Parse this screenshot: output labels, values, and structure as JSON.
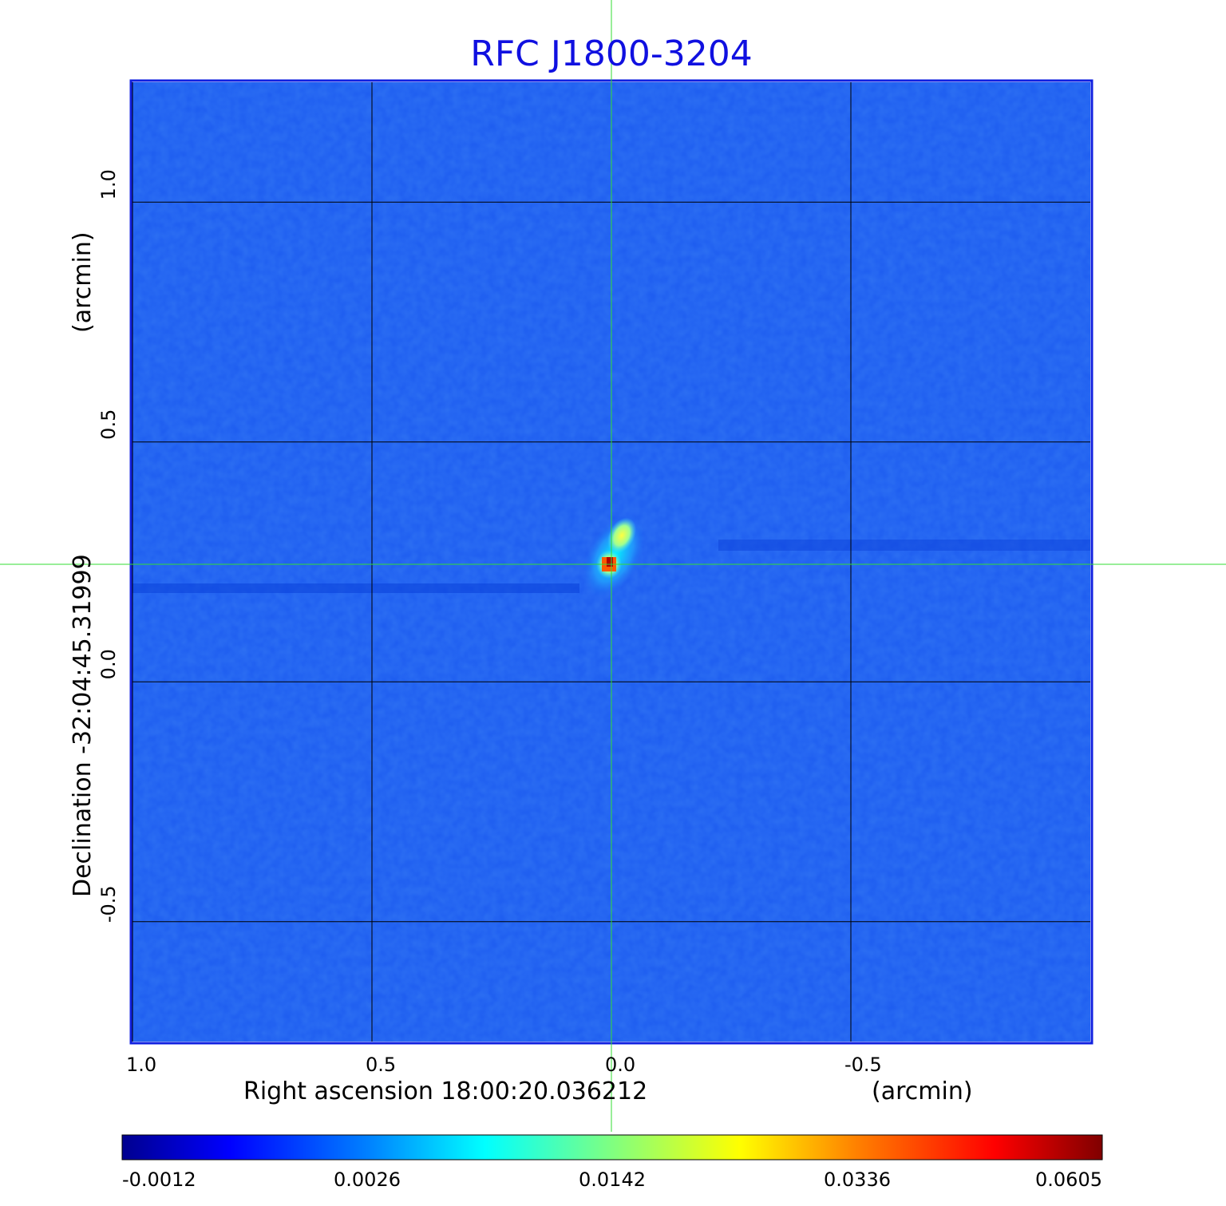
{
  "colors": {
    "title": "#1010e0",
    "background_field": "#1d5cf0",
    "grid": "#000000",
    "crosshair": "#33dd33",
    "frame": "#1020e0"
  },
  "chart_data": {
    "type": "heatmap",
    "title": "RFC J1800-3204",
    "xlabel": "Right ascension  18:00:20.036212",
    "xunit": "(arcmin)",
    "ylabel": "Declination  -32:04:45.31999",
    "yunit": "(arcmin)",
    "xlim": [
      1.0,
      -1.0
    ],
    "ylim": [
      -0.75,
      1.25
    ],
    "x_ticks": [
      1.0,
      0.5,
      0.0,
      -0.5
    ],
    "x_tick_labels": [
      "1.0",
      "0.5",
      "0.0",
      "-0.5"
    ],
    "y_ticks": [
      1.0,
      0.5,
      0.0,
      -0.5
    ],
    "y_tick_labels": [
      "1.0",
      "0.5",
      "0.0",
      "-0.5"
    ],
    "grid": true,
    "crosshair": {
      "x": 0.0,
      "y": 0.245
    },
    "source_peak": {
      "x": 0.005,
      "y": 0.245,
      "value": 0.0605
    },
    "colorbar": {
      "colormap": "jet",
      "ticks": [
        -0.0012,
        0.0026,
        0.0142,
        0.0336,
        0.0605
      ],
      "tick_labels": [
        "-0.0012",
        "0.0026",
        "0.0142",
        "0.0336",
        "0.0605"
      ],
      "orientation": "horizontal"
    }
  }
}
